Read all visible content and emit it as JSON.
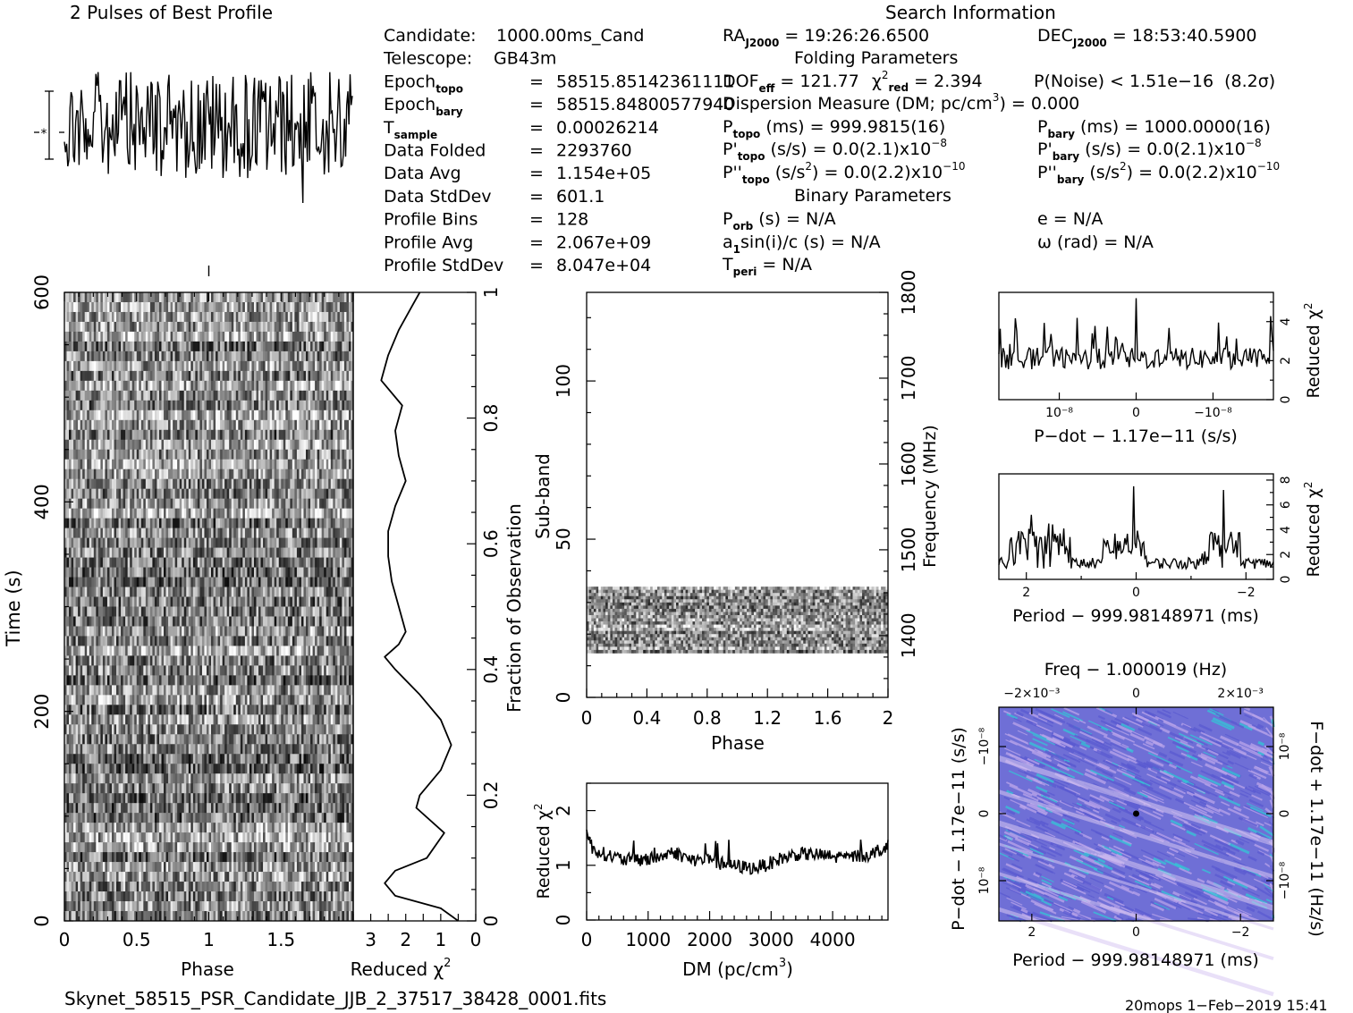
{
  "profile_title": "2 Pulses of Best Profile",
  "search_title": "Search Information",
  "info_col1": [
    {
      "label": "Candidate:",
      "sub": "",
      "eq": "",
      "value": "1000.00ms_Cand"
    },
    {
      "label": "Telescope:",
      "sub": "",
      "eq": "",
      "value": "GB43m"
    },
    {
      "label": "Epoch",
      "sub": "topo",
      "eq": "=",
      "value": "58515.85142361111"
    },
    {
      "label": "Epoch",
      "sub": "bary",
      "eq": "=",
      "value": "58515.84800577940"
    },
    {
      "label": "T",
      "sub": "sample",
      "eq": "=",
      "value": "0.00026214"
    },
    {
      "label": "Data Folded",
      "sub": "",
      "eq": "=",
      "value": "2293760"
    },
    {
      "label": "Data Avg",
      "sub": "",
      "eq": "=",
      "value": "1.154e+05"
    },
    {
      "label": "Data StdDev",
      "sub": "",
      "eq": "=",
      "value": "601.1"
    },
    {
      "label": "Profile Bins",
      "sub": "",
      "eq": "=",
      "value": "128"
    },
    {
      "label": "Profile Avg",
      "sub": "",
      "eq": "=",
      "value": "2.067e+09"
    },
    {
      "label": "Profile StdDev",
      "sub": "",
      "eq": "=",
      "value": "8.047e+04"
    }
  ],
  "ra": "19:26:26.6500",
  "dec": "18:53:40.5900",
  "folding_title": "Folding Parameters",
  "dof_eff": "121.77",
  "chi2_red": "2.394",
  "p_noise": "P(Noise) < 1.51e−16",
  "sigma": "(8.2σ)",
  "dm_line": "Dispersion Measure (DM; pc/cm",
  "dm_value": ") = 0.000",
  "p_topo": "999.9815(16)",
  "p_bary": "1000.0000(16)",
  "pd_topo": "0.0(2.1)x10",
  "pd_topo_exp": "−8",
  "pd_bary": "0.0(2.1)x10",
  "pd_bary_exp": "−8",
  "pdd_topo": "0.0(2.2)x10",
  "pdd_topo_exp": "−10",
  "pdd_bary": "0.0(2.2)x10",
  "pdd_bary_exp": "−10",
  "binary_title": "Binary Parameters",
  "p_orb": "N/A",
  "asini": "N/A",
  "t_peri": "N/A",
  "ecc": "N/A",
  "omega": "N/A",
  "footer_file": "Skynet_58515_PSR_Candidate_JJB_2_37517_38428_0001.fits",
  "footer_stamp": "20mops  1−Feb−2019 15:41",
  "chart_data": [
    {
      "type": "line",
      "name": "profile",
      "title": "2 Pulses of Best Profile",
      "note": "noise-like pulse profile over 2 rotations"
    },
    {
      "type": "heatmap",
      "name": "time-phase",
      "xlabel": "Phase",
      "ylabel": "Time (s)",
      "xlim": [
        0,
        2
      ],
      "ylim": [
        0,
        600
      ],
      "x_ticks": [
        "0",
        "0.5",
        "1",
        "1.5"
      ],
      "y_ticks": [
        "0",
        "200",
        "400",
        "600"
      ]
    },
    {
      "type": "line",
      "name": "time-reduced-chi2",
      "xlabel": "Reduced χ²",
      "ylabel": "Fraction of Observation",
      "xlim": [
        0,
        3.5
      ],
      "ylim": [
        0,
        1
      ],
      "x_ticks": [
        "3",
        "2",
        "1",
        "0"
      ],
      "y_ticks": [
        "0",
        "0.2",
        "0.4",
        "0.6",
        "0.8",
        "1"
      ],
      "fraction": [
        0,
        0.02,
        0.04,
        0.06,
        0.08,
        0.1,
        0.14,
        0.18,
        0.2,
        0.24,
        0.28,
        0.32,
        0.36,
        0.4,
        0.42,
        0.44,
        0.46,
        0.5,
        0.54,
        0.58,
        0.62,
        0.66,
        0.7,
        0.74,
        0.78,
        0.82,
        0.86,
        0.9,
        0.94,
        0.98,
        1.0
      ],
      "chi2": [
        0.5,
        1.0,
        2.3,
        2.6,
        2.3,
        1.4,
        0.9,
        1.7,
        1.6,
        1.0,
        0.7,
        1.0,
        1.6,
        2.3,
        2.6,
        2.2,
        2.0,
        2.2,
        2.4,
        2.5,
        2.5,
        2.3,
        2.0,
        2.2,
        2.3,
        2.1,
        2.7,
        2.5,
        2.2,
        1.8,
        1.6
      ]
    },
    {
      "type": "heatmap",
      "name": "subband-phase",
      "xlabel": "Phase",
      "ylabel": "Sub-band",
      "y2label": "Frequency (MHz)",
      "xlim": [
        0,
        2
      ],
      "ylim": [
        0,
        128
      ],
      "x_ticks": [
        "0",
        "0.4",
        "0.8",
        "1.2",
        "1.6",
        "2"
      ],
      "y_ticks": [
        "0",
        "50",
        "100"
      ],
      "y2_ticks": [
        "1400",
        "1500",
        "1600",
        "1700",
        "1800"
      ],
      "populated_subbands": [
        14,
        35
      ]
    },
    {
      "type": "line",
      "name": "dm-chi2",
      "xlabel": "DM (pc/cm³)",
      "ylabel": "Reduced χ²",
      "xlim": [
        0,
        4900
      ],
      "ylim": [
        0,
        2.5
      ],
      "x_ticks": [
        "0",
        "1000",
        "2000",
        "3000",
        "4000"
      ],
      "y_ticks": [
        "0",
        "1",
        "2"
      ],
      "x": [
        0,
        100,
        300,
        600,
        900,
        1200,
        1400,
        1700,
        2000,
        2300,
        2700,
        2900,
        3100,
        3400,
        3700,
        4000,
        4300,
        4600,
        4800,
        4900
      ],
      "y": [
        1.6,
        1.3,
        1.2,
        1.1,
        1.1,
        1.15,
        1.25,
        1.1,
        1.1,
        1.0,
        0.95,
        1.0,
        1.1,
        1.2,
        1.2,
        1.15,
        1.15,
        1.2,
        1.3,
        1.4
      ]
    },
    {
      "type": "line",
      "name": "pdot-chi2",
      "xlabel": "P−dot − 1.17e−11 (s/s)",
      "ylabel": "Reduced χ²",
      "ylim": [
        0,
        5.5
      ],
      "x_ticks": [
        "10⁻⁸",
        "0",
        "−10⁻⁸"
      ],
      "y_ticks": [
        "0",
        "2",
        "4"
      ],
      "peak_x": 0,
      "peak_y": 5.2,
      "baseline": 2
    },
    {
      "type": "line",
      "name": "period-chi2",
      "xlabel": "Period − 999.98148971 (ms)",
      "ylabel": "Reduced χ²",
      "xlim": [
        2.5,
        -2.5
      ],
      "ylim": [
        0,
        8.5
      ],
      "x_ticks": [
        "2",
        "0",
        "−2"
      ],
      "y_ticks": [
        "0",
        "2",
        "4",
        "6",
        "8"
      ],
      "peaks": [
        {
          "x": 0.05,
          "y": 7.5
        },
        {
          "x": -1.6,
          "y": 7.2
        },
        {
          "x": 1.9,
          "y": 5.2
        },
        {
          "x": 1.6,
          "y": 4.5
        }
      ]
    },
    {
      "type": "heatmap",
      "name": "p-pdot",
      "title": "Freq − 1.000019 (Hz)",
      "xlabel": "Period − 999.98148971 (ms)",
      "ylabel": "P−dot − 1.17e−11 (s/s)",
      "y2label": "F−dot + 1.17e−11 (Hz/s)",
      "x_ticks": [
        "2",
        "0",
        "−2"
      ],
      "top_ticks": [
        "−2×10⁻³",
        "0",
        "2×10⁻³"
      ],
      "y_ticks": [
        "10⁻⁸",
        "0",
        "−10⁻⁸"
      ],
      "y2_ticks": [
        "−10⁻⁸",
        "0",
        "10⁻⁸"
      ]
    }
  ]
}
